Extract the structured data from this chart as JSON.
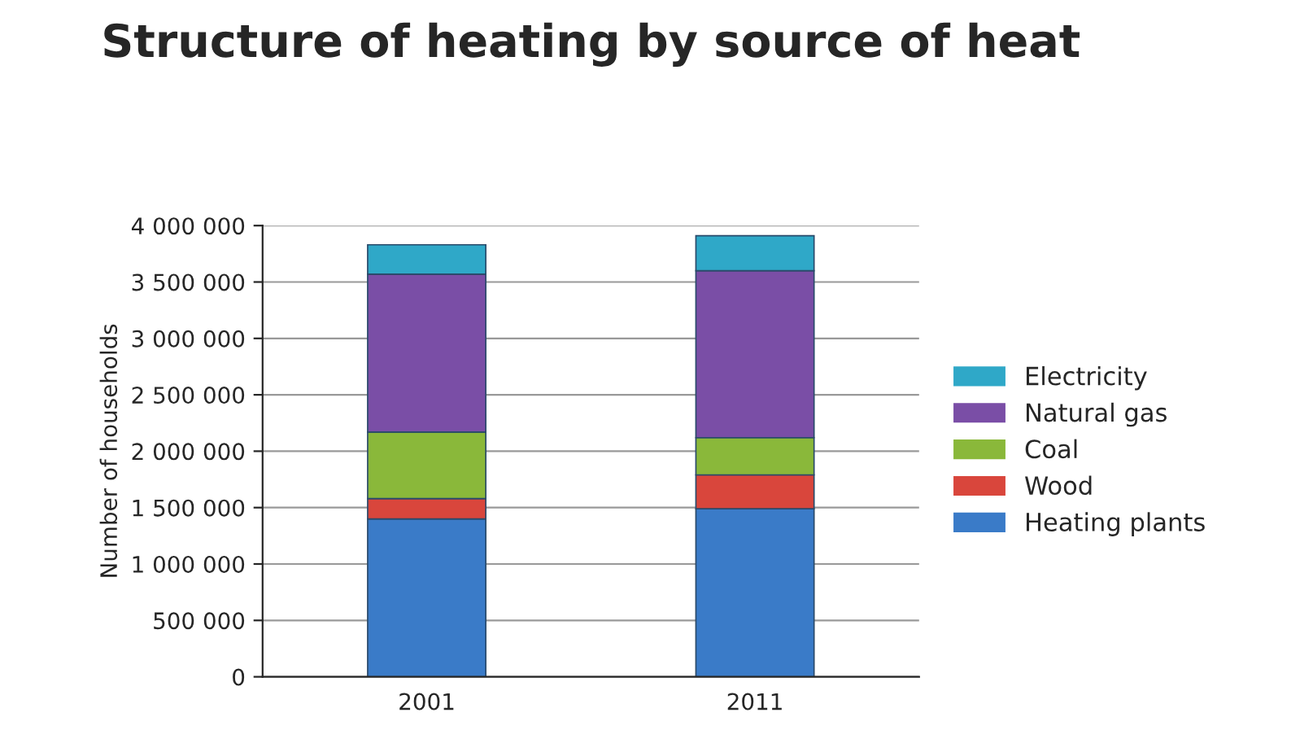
{
  "chart_data": {
    "type": "bar",
    "stacked": true,
    "title": "Structure of heating by source of heat",
    "ylabel": "Number of households",
    "categories": [
      "2001",
      "2011"
    ],
    "series": [
      {
        "name": "Heating plants",
        "color": "#3a7bc8",
        "values": [
          1400000,
          1490000
        ]
      },
      {
        "name": "Wood",
        "color": "#d9463c",
        "values": [
          180000,
          300000
        ]
      },
      {
        "name": "Coal",
        "color": "#8ab83a",
        "values": [
          590000,
          330000
        ]
      },
      {
        "name": "Natural gas",
        "color": "#7a4ea6",
        "values": [
          1400000,
          1480000
        ]
      },
      {
        "name": "Electricity",
        "color": "#2fa8c8",
        "values": [
          260000,
          310000
        ]
      }
    ],
    "ylim": [
      0,
      4000000
    ],
    "yticks": [
      {
        "value": 0,
        "label": "0"
      },
      {
        "value": 500000,
        "label": "500 000"
      },
      {
        "value": 1000000,
        "label": "1 000 000"
      },
      {
        "value": 1500000,
        "label": "1 500 000"
      },
      {
        "value": 2000000,
        "label": "2 000 000"
      },
      {
        "value": 2500000,
        "label": "2 500 000"
      },
      {
        "value": 3000000,
        "label": "3 000 000"
      },
      {
        "value": 3500000,
        "label": "3 500 000"
      },
      {
        "value": 4000000,
        "label": "4 000 000"
      }
    ],
    "grid": "y",
    "legend": "right"
  }
}
